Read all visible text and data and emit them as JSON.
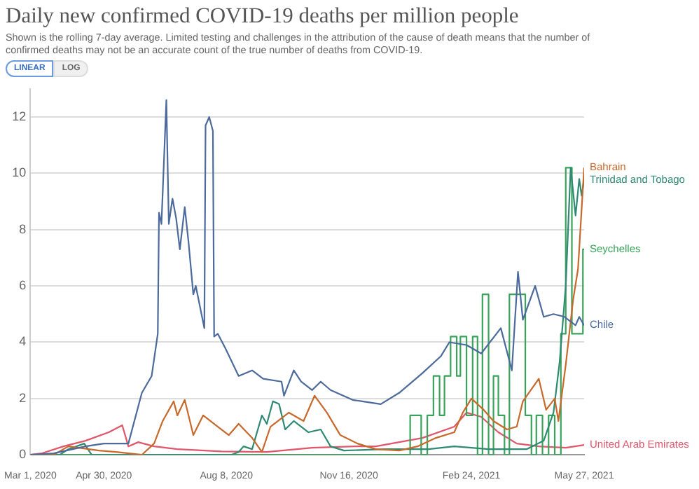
{
  "chart_data": {
    "type": "line",
    "title": "Daily new confirmed COVID-19 deaths per million people",
    "subtitle": "Shown is the rolling 7-day average. Limited testing and challenges in the attribution of the cause of death means that the number of confirmed deaths may not be an accurate count of the true number of deaths from COVID-19.",
    "annotations": [
      "LINEAR",
      "LOG"
    ],
    "xlim": [
      "2020-03-01",
      "2021-05-27"
    ],
    "xticks": [
      {
        "value": "2020-03-01",
        "label": "Mar 1, 2020"
      },
      {
        "value": "2020-04-30",
        "label": "Apr 30, 2020"
      },
      {
        "value": "2020-08-08",
        "label": "Aug 8, 2020"
      },
      {
        "value": "2020-11-16",
        "label": "Nov 16, 2020"
      },
      {
        "value": "2021-02-24",
        "label": "Feb 24, 2021"
      },
      {
        "value": "2021-05-27",
        "label": "May 27, 2021"
      }
    ],
    "ylim": [
      0,
      13
    ],
    "yticks": [
      0,
      2,
      4,
      6,
      8,
      10,
      12
    ],
    "grid": "y",
    "legend": "right",
    "marker": "none",
    "line_style": "solid",
    "series": [
      {
        "name": "Chile",
        "color": "#4c6a9c",
        "x": [
          "2020-03-01",
          "2020-03-20",
          "2020-04-15",
          "2020-04-30",
          "2020-05-20",
          "2020-05-31",
          "2020-06-08",
          "2020-06-13",
          "2020-06-14",
          "2020-06-16",
          "2020-06-20",
          "2020-06-22",
          "2020-06-25",
          "2020-06-28",
          "2020-07-01",
          "2020-07-05",
          "2020-07-08",
          "2020-07-12",
          "2020-07-14",
          "2020-07-21",
          "2020-07-22",
          "2020-07-25",
          "2020-07-28",
          "2020-07-29",
          "2020-08-01",
          "2020-08-07",
          "2020-08-18",
          "2020-08-29",
          "2020-09-07",
          "2020-09-22",
          "2020-09-24",
          "2020-10-02",
          "2020-10-08",
          "2020-10-17",
          "2020-10-24",
          "2020-11-01",
          "2020-11-19",
          "2020-11-27",
          "2020-12-12",
          "2020-12-27",
          "2021-01-15",
          "2021-01-30",
          "2021-02-06",
          "2021-02-20",
          "2021-03-04",
          "2021-03-20",
          "2021-03-29",
          "2021-04-03",
          "2021-04-07",
          "2021-04-17",
          "2021-04-24",
          "2021-05-02",
          "2021-05-11",
          "2021-05-20",
          "2021-05-23",
          "2021-05-27"
        ],
        "values": [
          0,
          0.05,
          0.3,
          0.4,
          0.4,
          2.2,
          2.8,
          4.3,
          8.6,
          8.2,
          12.6,
          8.2,
          9.1,
          8.4,
          7.3,
          8.8,
          7.6,
          5.7,
          6.0,
          4.5,
          11.7,
          12.0,
          11.5,
          4.2,
          4.3,
          3.8,
          2.8,
          3.0,
          2.7,
          2.6,
          2.1,
          3.0,
          2.6,
          2.3,
          2.6,
          2.3,
          1.95,
          1.9,
          1.8,
          2.2,
          2.9,
          3.5,
          4.0,
          3.9,
          3.6,
          4.5,
          3.0,
          6.5,
          4.8,
          6.0,
          4.9,
          5.0,
          4.9,
          4.6,
          4.9,
          4.6
        ]
      },
      {
        "name": "Bahrain",
        "color": "#c8692c",
        "x": [
          "2020-03-01",
          "2020-03-20",
          "2020-04-01",
          "2020-04-26",
          "2020-05-10",
          "2020-05-31",
          "2020-06-10",
          "2020-06-17",
          "2020-06-26",
          "2020-06-29",
          "2020-07-05",
          "2020-07-12",
          "2020-07-20",
          "2020-07-23",
          "2020-08-01",
          "2020-08-10",
          "2020-08-18",
          "2020-08-29",
          "2020-09-06",
          "2020-09-13",
          "2020-09-28",
          "2020-10-10",
          "2020-10-19",
          "2020-10-29",
          "2020-11-09",
          "2020-11-23",
          "2020-12-08",
          "2020-12-27",
          "2021-01-11",
          "2021-01-26",
          "2021-02-10",
          "2021-02-17",
          "2021-02-24",
          "2021-03-06",
          "2021-03-14",
          "2021-03-25",
          "2021-04-02",
          "2021-04-07",
          "2021-04-20",
          "2021-04-26",
          "2021-05-03",
          "2021-05-06",
          "2021-05-12",
          "2021-05-18",
          "2021-05-22",
          "2021-05-27"
        ],
        "values": [
          0,
          0,
          0.3,
          0.15,
          0.1,
          0,
          0.4,
          1.2,
          1.9,
          1.4,
          1.95,
          0.7,
          1.4,
          1.3,
          1.0,
          0.7,
          1.1,
          0.6,
          0.1,
          1.0,
          1.5,
          1.2,
          2.1,
          1.5,
          0.7,
          0.4,
          0.2,
          0.15,
          0.3,
          0.6,
          0.8,
          1.5,
          2.0,
          1.6,
          1.2,
          0.9,
          1.0,
          1.9,
          2.7,
          1.6,
          2.0,
          1.2,
          3.2,
          5.5,
          6.6,
          10.2
        ]
      },
      {
        "name": "Trinidad and Tobago",
        "color": "#2f8a72",
        "x": [
          "2020-03-01",
          "2020-03-25",
          "2020-04-01",
          "2020-04-14",
          "2020-04-20",
          "2020-08-12",
          "2020-08-18",
          "2020-08-22",
          "2020-08-29",
          "2020-09-06",
          "2020-09-10",
          "2020-09-15",
          "2020-09-20",
          "2020-09-25",
          "2020-10-02",
          "2020-10-14",
          "2020-10-24",
          "2020-11-01",
          "2020-11-12",
          "2020-12-15",
          "2021-01-20",
          "2021-02-10",
          "2021-03-10",
          "2021-04-10",
          "2021-04-24",
          "2021-05-02",
          "2021-05-07",
          "2021-05-12",
          "2021-05-16",
          "2021-05-20",
          "2021-05-23",
          "2021-05-25",
          "2021-05-27"
        ],
        "values": [
          0,
          0,
          0.2,
          0.4,
          0,
          0,
          0.1,
          0.3,
          0.2,
          1.4,
          1.1,
          1.9,
          1.8,
          0.9,
          1.2,
          0.8,
          0.9,
          0.3,
          0.15,
          0.2,
          0.2,
          0.3,
          0.2,
          0.2,
          0.5,
          1.5,
          3.3,
          6.0,
          10.2,
          8.5,
          9.8,
          9.2,
          9.8
        ]
      },
      {
        "name": "Seychelles",
        "color": "#3aa35b",
        "type": "step",
        "x": [
          "2020-03-01",
          "2021-01-05",
          "2021-01-14",
          "2021-01-19",
          "2021-01-24",
          "2021-01-29",
          "2021-02-02",
          "2021-02-07",
          "2021-02-12",
          "2021-02-15",
          "2021-02-20",
          "2021-02-25",
          "2021-03-01",
          "2021-03-05",
          "2021-03-10",
          "2021-03-14",
          "2021-03-18",
          "2021-03-23",
          "2021-03-27",
          "2021-04-09",
          "2021-04-14",
          "2021-04-18",
          "2021-04-23",
          "2021-04-28",
          "2021-05-03",
          "2021-05-08",
          "2021-05-12",
          "2021-05-17",
          "2021-05-26",
          "2021-05-27"
        ],
        "values": [
          0,
          1.4,
          0,
          1.4,
          2.8,
          1.4,
          2.8,
          4.2,
          2.8,
          4.2,
          1.4,
          4.2,
          0,
          5.7,
          0,
          2.8,
          1.4,
          0,
          5.7,
          1.4,
          0,
          1.4,
          0,
          1.4,
          0,
          4.3,
          10.2,
          4.3,
          7.3,
          7.3
        ]
      },
      {
        "name": "United Arab Emirates",
        "color": "#e0566b",
        "x": [
          "2020-03-01",
          "2020-03-10",
          "2020-03-28",
          "2020-04-15",
          "2020-05-04",
          "2020-05-15",
          "2020-05-20",
          "2020-05-28",
          "2020-06-10",
          "2020-06-29",
          "2020-08-04",
          "2020-09-10",
          "2020-10-17",
          "2020-11-21",
          "2020-12-08",
          "2021-01-15",
          "2021-02-10",
          "2021-02-20",
          "2021-03-04",
          "2021-03-18",
          "2021-04-02",
          "2021-04-20",
          "2021-05-12",
          "2021-05-27"
        ],
        "values": [
          0,
          0.05,
          0.3,
          0.5,
          0.8,
          1.05,
          0.3,
          0.45,
          0.3,
          0.2,
          0.12,
          0.1,
          0.25,
          0.3,
          0.3,
          0.6,
          1.0,
          1.5,
          1.35,
          0.8,
          0.4,
          0.3,
          0.25,
          0.35
        ]
      }
    ]
  }
}
